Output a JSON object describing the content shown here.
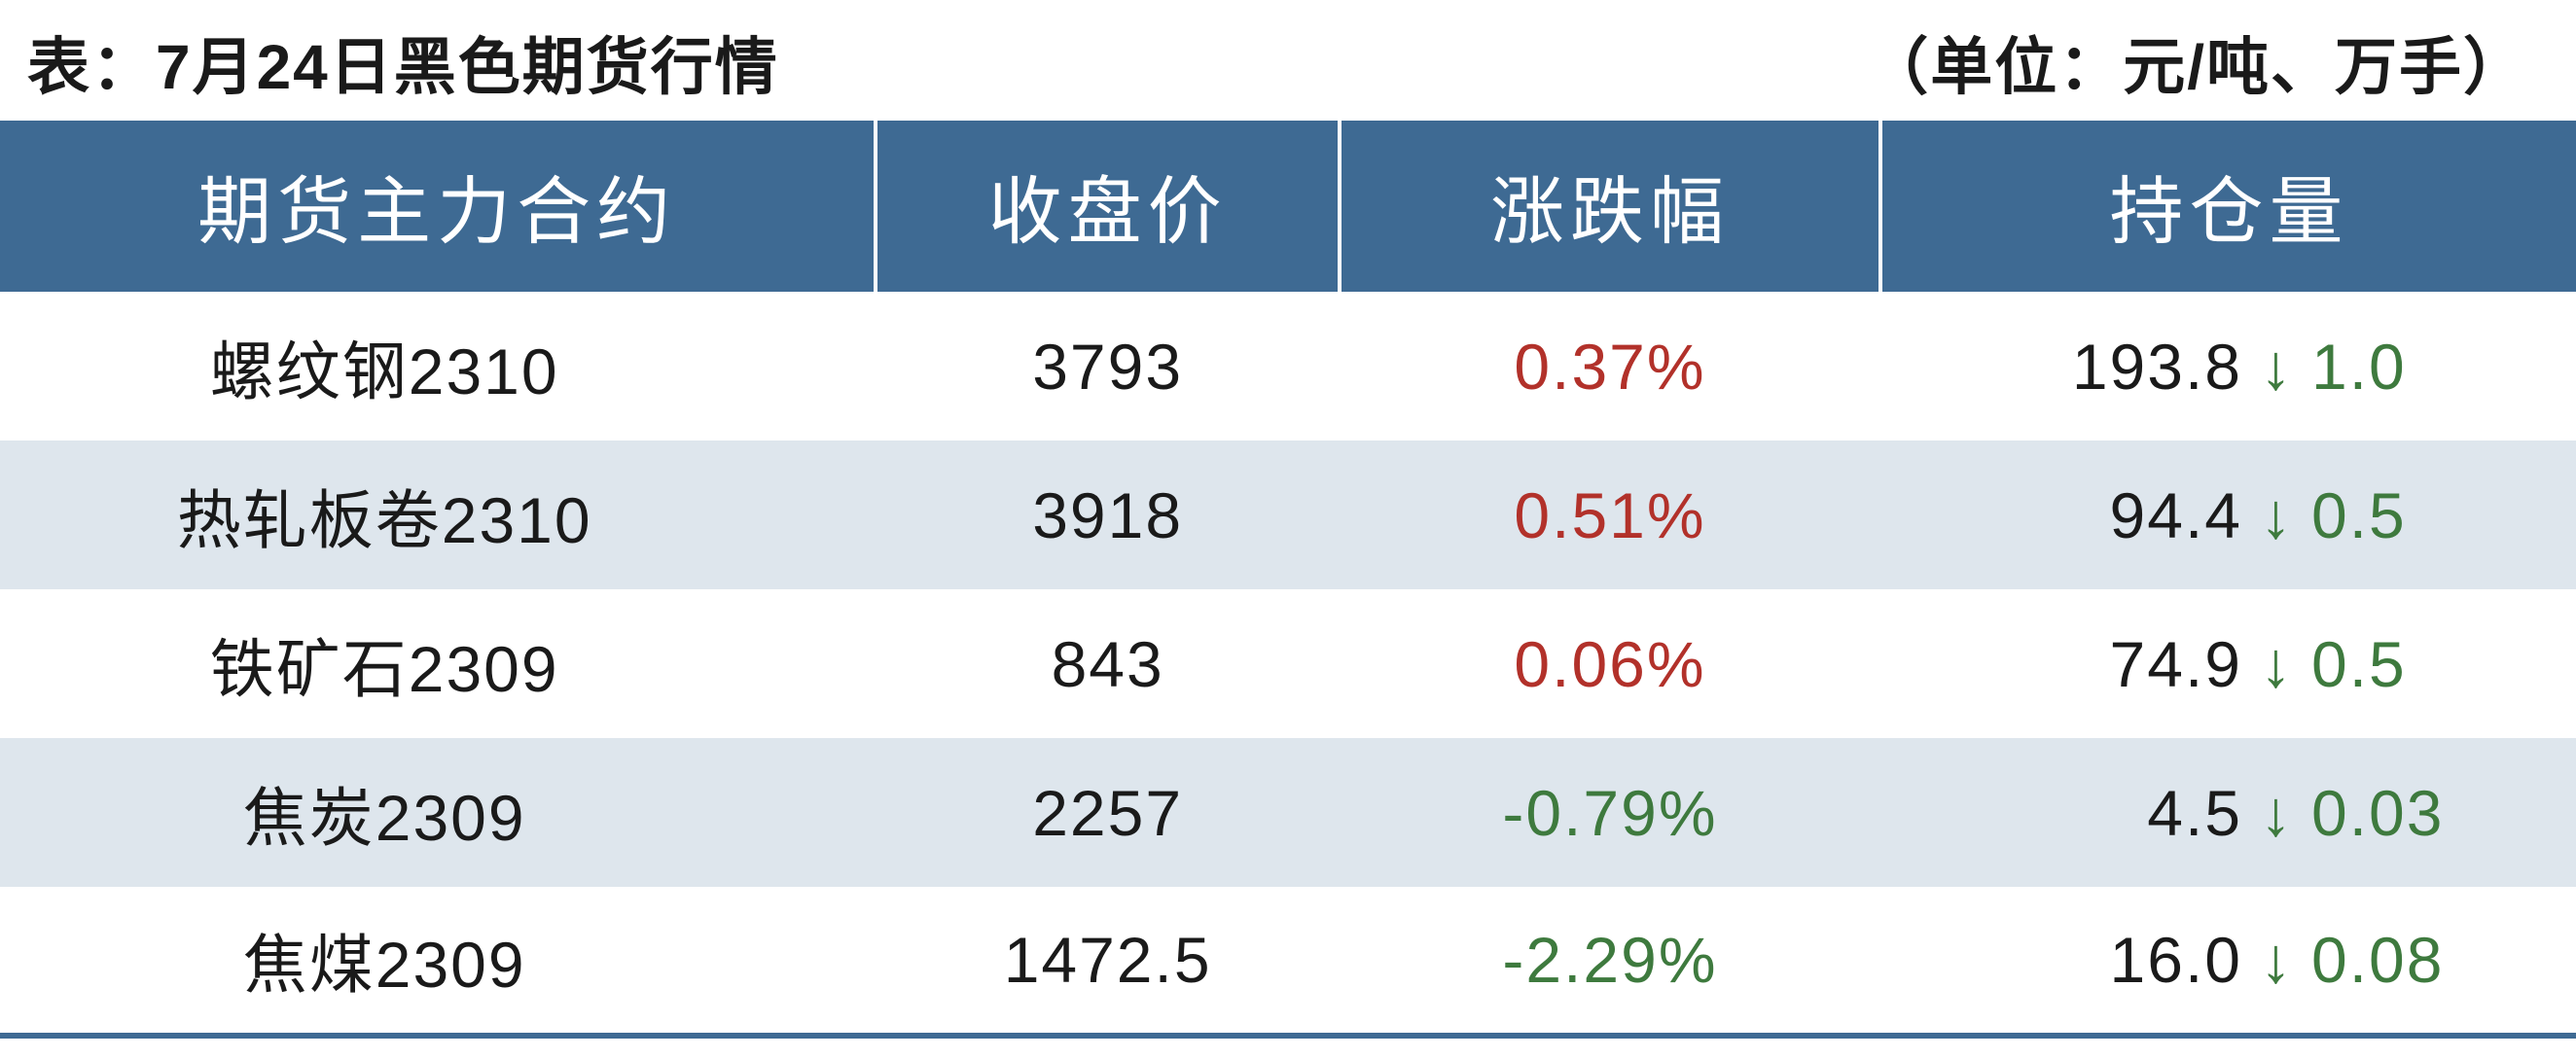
{
  "caption": {
    "title": "表：7月24日黑色期货行情",
    "unit": "（单位：元/吨、万手）"
  },
  "table": {
    "type": "table",
    "header_bg": "#3e6a93",
    "header_fg": "#ffffff",
    "row_bg_alt": "#dee6ed",
    "row_bg": "#ffffff",
    "border_color": "#3e6a93",
    "up_color": "#b2312a",
    "down_color": "#3e7a3e",
    "text_color": "#1a1a1a",
    "columns": [
      "期货主力合约",
      "收盘价",
      "涨跌幅",
      "持仓量"
    ],
    "col_widths_pct": [
      34,
      18,
      21,
      27
    ],
    "header_fontsize": 76,
    "cell_fontsize": 66,
    "rows": [
      {
        "contract": "螺纹钢2310",
        "close": "3793",
        "change": "0.37%",
        "change_dir": "up",
        "oi": "193.8",
        "oi_delta": "1.0",
        "oi_dir": "down"
      },
      {
        "contract": "热轧板卷2310",
        "close": "3918",
        "change": "0.51%",
        "change_dir": "up",
        "oi": "94.4",
        "oi_delta": "0.5",
        "oi_dir": "down"
      },
      {
        "contract": "铁矿石2309",
        "close": "843",
        "change": "0.06%",
        "change_dir": "up",
        "oi": "74.9",
        "oi_delta": "0.5",
        "oi_dir": "down"
      },
      {
        "contract": "焦炭2309",
        "close": "2257",
        "change": "-0.79%",
        "change_dir": "down",
        "oi": "4.5",
        "oi_delta": "0.03",
        "oi_dir": "down"
      },
      {
        "contract": "焦煤2309",
        "close": "1472.5",
        "change": "-2.29%",
        "change_dir": "down",
        "oi": "16.0",
        "oi_delta": "0.08",
        "oi_dir": "down"
      }
    ]
  }
}
